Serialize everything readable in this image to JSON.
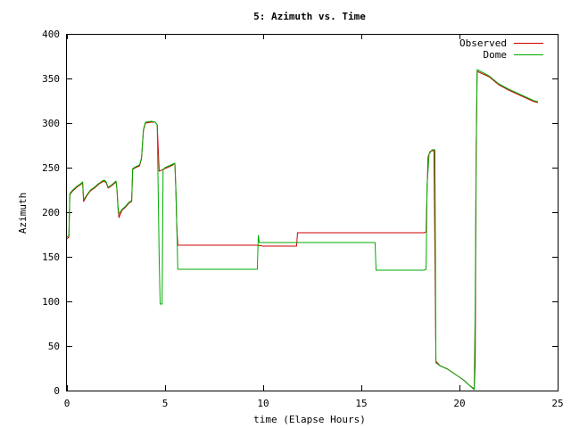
{
  "chart_data": {
    "type": "line",
    "title": "5: Azimuth vs. Time",
    "xlabel": "time (Elapse Hours)",
    "ylabel": "Azimuth",
    "xlim": [
      0,
      25
    ],
    "ylim": [
      0,
      400
    ],
    "xticks": [
      "0",
      "5",
      "10",
      "15",
      "20",
      "25"
    ],
    "yticks": [
      "0",
      "50",
      "100",
      "150",
      "200",
      "250",
      "300",
      "350",
      "400"
    ],
    "grid": false,
    "legend_position": "top-right",
    "series": [
      {
        "name": "Observed",
        "color": "#cc0000",
        "points": [
          [
            0,
            170
          ],
          [
            0.1,
            172
          ],
          [
            0.15,
            220
          ],
          [
            0.3,
            224
          ],
          [
            0.5,
            228
          ],
          [
            0.7,
            231
          ],
          [
            0.8,
            233
          ],
          [
            0.85,
            212
          ],
          [
            1.0,
            218
          ],
          [
            1.2,
            224
          ],
          [
            1.4,
            227
          ],
          [
            1.6,
            231
          ],
          [
            1.8,
            234
          ],
          [
            1.9,
            235
          ],
          [
            2.0,
            233
          ],
          [
            2.1,
            227
          ],
          [
            2.3,
            230
          ],
          [
            2.5,
            234
          ],
          [
            2.55,
            225
          ],
          [
            2.6,
            205
          ],
          [
            2.65,
            194
          ],
          [
            2.8,
            202
          ],
          [
            3.0,
            206
          ],
          [
            3.15,
            210
          ],
          [
            3.3,
            212
          ],
          [
            3.35,
            248
          ],
          [
            3.5,
            250
          ],
          [
            3.7,
            252
          ],
          [
            3.8,
            260
          ],
          [
            3.9,
            292
          ],
          [
            4.0,
            300
          ],
          [
            4.3,
            301
          ],
          [
            4.5,
            301
          ],
          [
            4.6,
            298
          ],
          [
            4.7,
            246
          ],
          [
            4.8,
            247
          ],
          [
            5.0,
            249
          ],
          [
            5.2,
            251
          ],
          [
            5.4,
            253
          ],
          [
            5.5,
            255
          ],
          [
            5.55,
            226
          ],
          [
            5.6,
            183
          ],
          [
            5.65,
            163
          ],
          [
            9.7,
            163
          ],
          [
            10.0,
            162
          ],
          [
            11.7,
            162
          ],
          [
            11.75,
            177
          ],
          [
            18.2,
            177
          ],
          [
            18.3,
            178
          ],
          [
            18.35,
            225
          ],
          [
            18.4,
            262
          ],
          [
            18.5,
            268
          ],
          [
            18.6,
            269
          ],
          [
            18.7,
            269
          ],
          [
            18.8,
            33
          ],
          [
            19.0,
            28
          ],
          [
            19.4,
            24
          ],
          [
            19.8,
            18
          ],
          [
            20.2,
            12
          ],
          [
            20.5,
            6
          ],
          [
            20.75,
            2
          ],
          [
            20.8,
            30
          ],
          [
            20.85,
            260
          ],
          [
            20.9,
            358
          ],
          [
            21.5,
            352
          ],
          [
            22.0,
            343
          ],
          [
            22.5,
            337
          ],
          [
            23.0,
            332
          ],
          [
            23.4,
            328
          ],
          [
            23.8,
            324
          ],
          [
            24.0,
            323
          ]
        ]
      },
      {
        "name": "Dome",
        "color": "#00aa00",
        "points": [
          [
            0,
            172
          ],
          [
            0.1,
            174
          ],
          [
            0.15,
            221
          ],
          [
            0.3,
            225
          ],
          [
            0.5,
            229
          ],
          [
            0.7,
            232
          ],
          [
            0.8,
            234
          ],
          [
            0.85,
            214
          ],
          [
            1.0,
            219
          ],
          [
            1.2,
            225
          ],
          [
            1.4,
            228
          ],
          [
            1.6,
            232
          ],
          [
            1.8,
            235
          ],
          [
            1.9,
            236
          ],
          [
            2.0,
            234
          ],
          [
            2.1,
            228
          ],
          [
            2.3,
            231
          ],
          [
            2.5,
            235
          ],
          [
            2.55,
            226
          ],
          [
            2.6,
            207
          ],
          [
            2.65,
            198
          ],
          [
            2.8,
            203
          ],
          [
            3.0,
            207
          ],
          [
            3.15,
            211
          ],
          [
            3.3,
            213
          ],
          [
            3.35,
            249
          ],
          [
            3.5,
            251
          ],
          [
            3.7,
            253
          ],
          [
            3.8,
            261
          ],
          [
            3.9,
            293
          ],
          [
            4.0,
            301
          ],
          [
            4.3,
            302
          ],
          [
            4.5,
            301
          ],
          [
            4.6,
            298
          ],
          [
            4.7,
            150
          ],
          [
            4.75,
            97
          ],
          [
            4.85,
            97
          ],
          [
            4.9,
            248
          ],
          [
            5.0,
            250
          ],
          [
            5.2,
            252
          ],
          [
            5.4,
            254
          ],
          [
            5.5,
            255
          ],
          [
            5.55,
            226
          ],
          [
            5.6,
            183
          ],
          [
            5.65,
            136
          ],
          [
            9.7,
            136
          ],
          [
            9.75,
            174
          ],
          [
            9.8,
            166
          ],
          [
            15.7,
            166
          ],
          [
            15.75,
            135
          ],
          [
            18.2,
            135
          ],
          [
            18.3,
            136
          ],
          [
            18.35,
            230
          ],
          [
            18.45,
            265
          ],
          [
            18.6,
            270
          ],
          [
            18.75,
            270
          ],
          [
            18.8,
            31
          ],
          [
            19.0,
            28
          ],
          [
            19.4,
            24
          ],
          [
            19.8,
            18
          ],
          [
            20.2,
            12
          ],
          [
            20.5,
            6
          ],
          [
            20.75,
            1
          ],
          [
            20.8,
            92
          ],
          [
            20.85,
            270
          ],
          [
            20.9,
            360
          ],
          [
            21.5,
            353
          ],
          [
            22.0,
            344
          ],
          [
            22.5,
            338
          ],
          [
            23.0,
            333
          ],
          [
            23.4,
            329
          ],
          [
            23.8,
            325
          ],
          [
            24.0,
            324
          ]
        ]
      }
    ]
  }
}
